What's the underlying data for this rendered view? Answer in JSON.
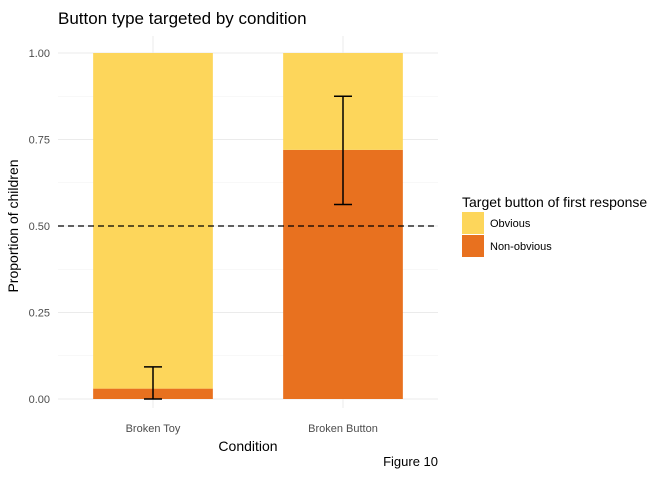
{
  "chart_data": {
    "type": "bar",
    "stacked": true,
    "title": "Button type targeted by condition",
    "xlabel": "Condition",
    "ylabel": "Proportion of children",
    "caption": "Figure 10",
    "categories": [
      "Broken Toy",
      "Broken Button"
    ],
    "yticks": [
      "0.00",
      "0.25",
      "0.50",
      "0.75",
      "1.00"
    ],
    "ylim": [
      0,
      1
    ],
    "grid": true,
    "reference_line": {
      "y": 0.5,
      "style": "dashed"
    },
    "legend": {
      "title": "Target button of first response",
      "placement": "right"
    },
    "series": [
      {
        "name": "Non-obvious",
        "color": "#E8711F",
        "values": [
          0.03,
          0.72
        ]
      },
      {
        "name": "Obvious",
        "color": "#FDD65B",
        "values": [
          0.97,
          0.28
        ]
      }
    ],
    "error_bars": [
      {
        "category": "Broken Toy",
        "low": 0.0,
        "high": 0.093
      },
      {
        "category": "Broken Button",
        "low": 0.562,
        "high": 0.875
      }
    ]
  }
}
